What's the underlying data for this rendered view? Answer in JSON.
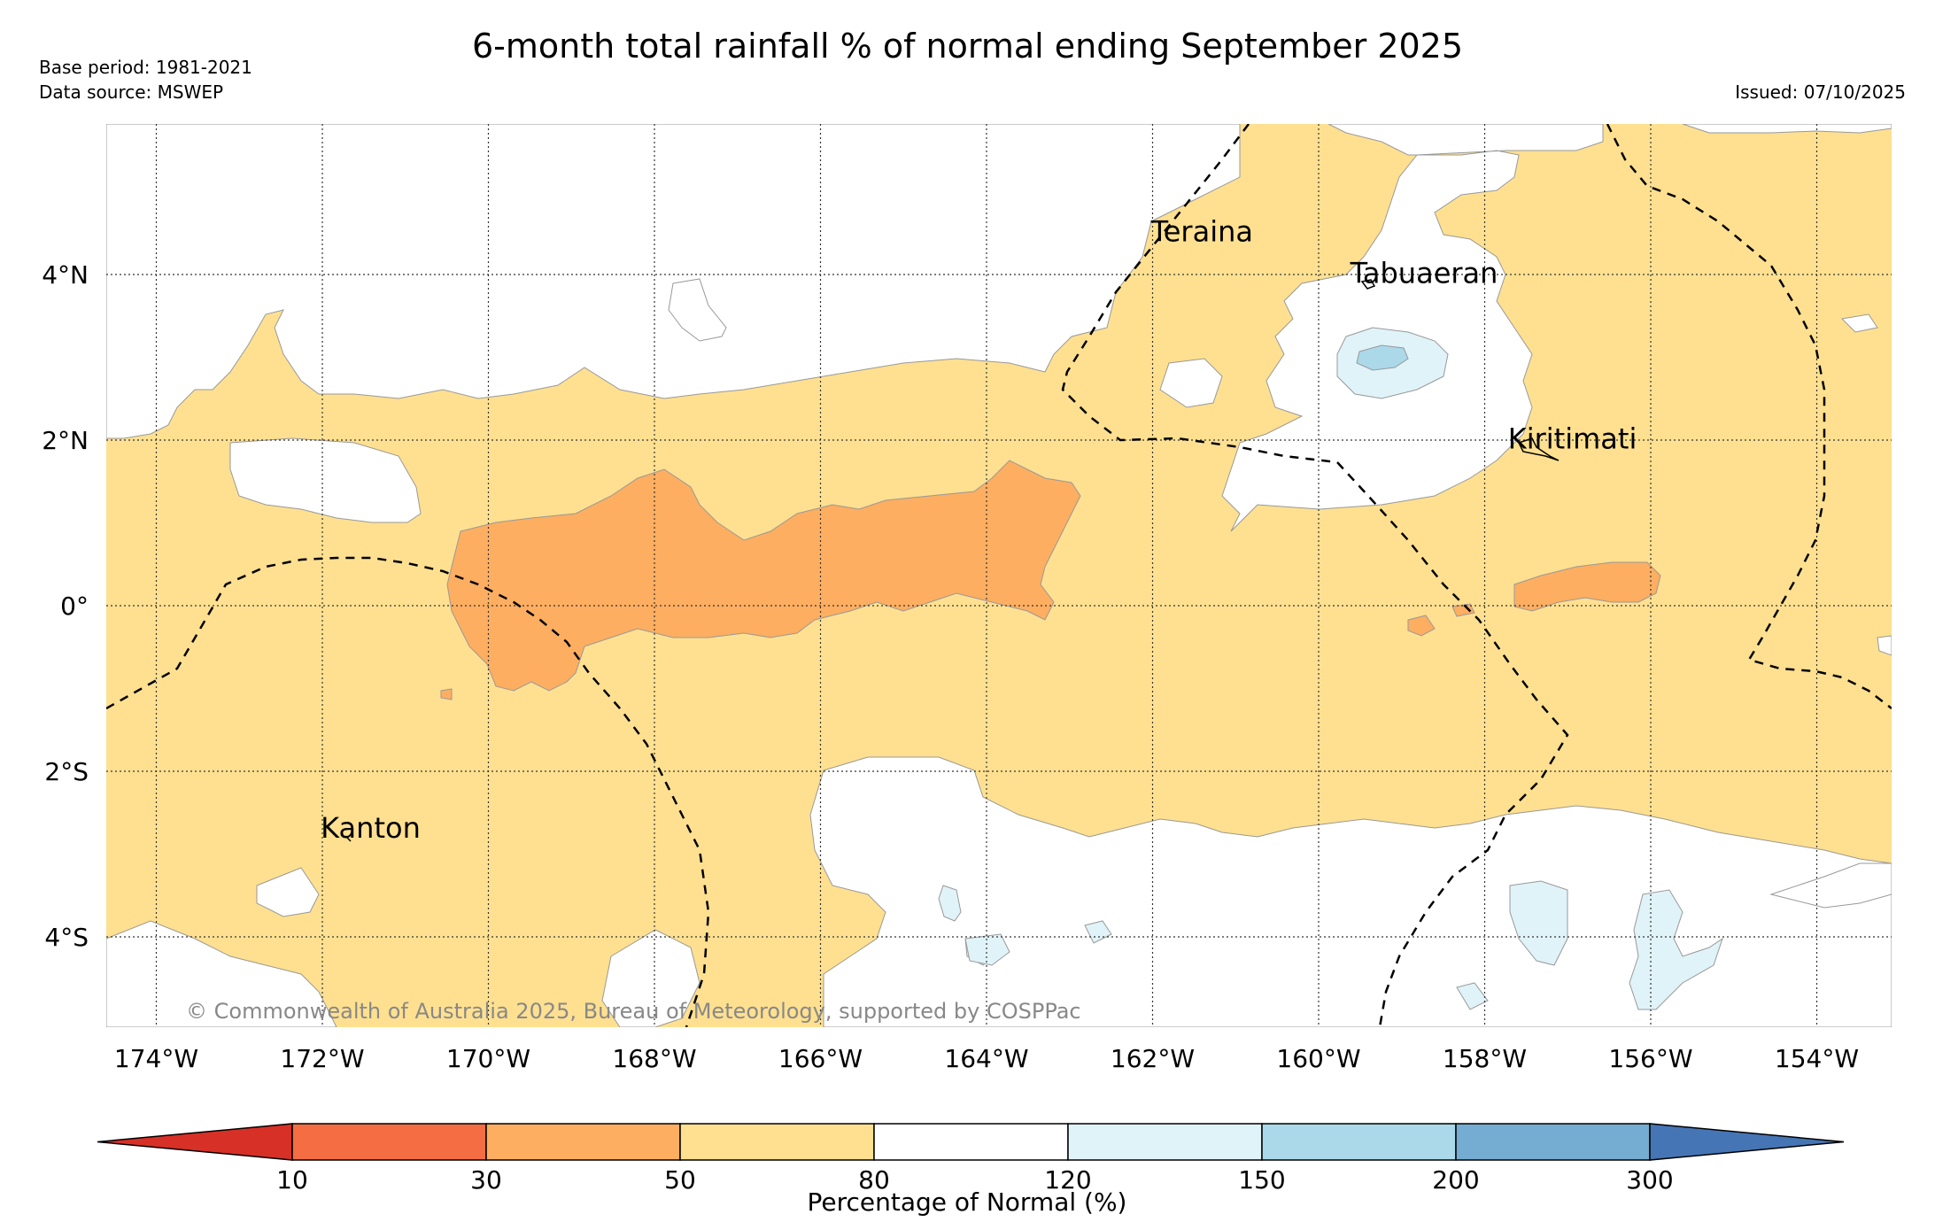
{
  "header": {
    "title": "6-month total rainfall % of normal ending September 2025",
    "base_period": "Base period: 1981-2021",
    "data_source": "Data source: MSWEP",
    "issued": "Issued: 07/10/2025"
  },
  "map": {
    "lon_ticks": [
      "174°W",
      "172°W",
      "170°W",
      "168°W",
      "166°W",
      "164°W",
      "162°W",
      "160°W",
      "158°W",
      "156°W",
      "154°W"
    ],
    "lat_ticks": [
      "4°N",
      "2°N",
      "0°",
      "2°S",
      "4°S"
    ],
    "places": [
      {
        "name": "Teraina",
        "lon": -161.7,
        "lat": 4.4
      },
      {
        "name": "Tabuaeran",
        "lon": -159.3,
        "lat": 3.9
      },
      {
        "name": "Kiritimati",
        "lon": -157.4,
        "lat": 1.9
      },
      {
        "name": "Kanton",
        "lon": -171.7,
        "lat": -2.8
      }
    ],
    "credit": "© Commonwealth of Australia 2025, Bureau of Meteorology, supported by COSPPac"
  },
  "colorbar": {
    "label": "Percentage of Normal (%)",
    "ticks": [
      "10",
      "30",
      "50",
      "80",
      "120",
      "150",
      "200",
      "300"
    ],
    "colors": [
      "#d73027",
      "#f46d43",
      "#fdae61",
      "#fee090",
      "#ffffff",
      "#e0f3f8",
      "#abd9e9",
      "#74add1",
      "#4575b4"
    ]
  }
}
